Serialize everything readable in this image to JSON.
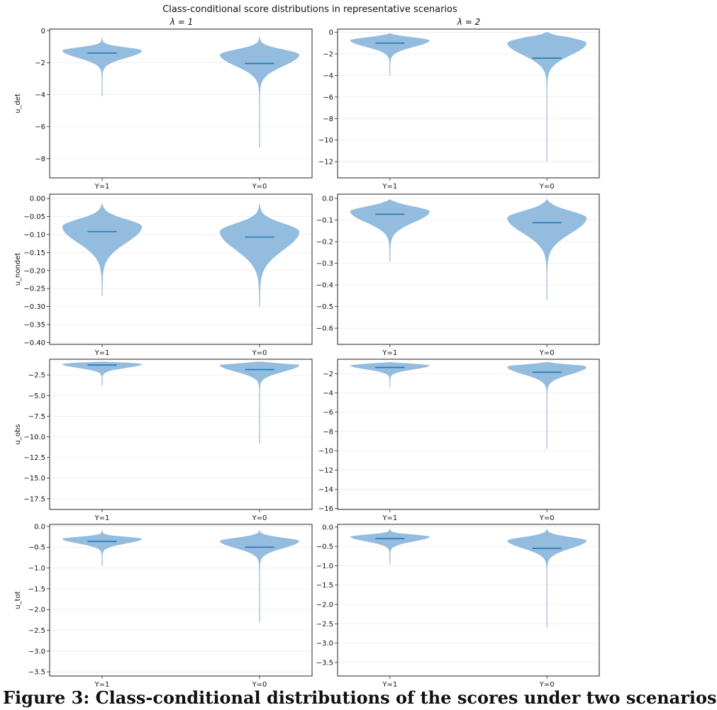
{
  "figure": {
    "title": "Class-conditional score distributions in representative scenarios",
    "column_titles": [
      "λ = 1",
      "λ = 2"
    ],
    "caption": "Figure 3: Class-conditional distributions of the scores under two scenarios"
  },
  "colors": {
    "violin_fill": "#8db8dc",
    "median_line": "#1f77b4",
    "grid": "#ebebeb",
    "axis": "#222222",
    "text": "#111111"
  },
  "chart_data": [
    {
      "type": "violin",
      "row": 0,
      "col": 0,
      "title": "λ = 1",
      "xlabel": "",
      "ylabel": "u_det",
      "categories": [
        "Y=1",
        "Y=0"
      ],
      "ylim": [
        -9.2,
        0.1
      ],
      "yticks": [
        0,
        -2,
        -4,
        -6,
        -8
      ],
      "ytick_labels": [
        "0",
        "−2",
        "−4",
        "−6",
        "−8"
      ],
      "grid": true,
      "violins": [
        {
          "category": "Y=1",
          "median": -1.4,
          "top": -0.45,
          "bottom": -4.1,
          "mode": -1.25,
          "width": 0.5,
          "spread": 0.45
        },
        {
          "category": "Y=0",
          "median": -2.05,
          "top": -0.4,
          "bottom": -7.3,
          "mode": -1.5,
          "width": 0.5,
          "spread": 0.7
        }
      ]
    },
    {
      "type": "violin",
      "row": 0,
      "col": 1,
      "title": "λ = 2",
      "xlabel": "",
      "ylabel": "",
      "categories": [
        "Y=1",
        "Y=0"
      ],
      "ylim": [
        -13.5,
        0.3
      ],
      "yticks": [
        0,
        -2,
        -4,
        -6,
        -8,
        -10,
        -12
      ],
      "ytick_labels": [
        "0",
        "−2",
        "−4",
        "−6",
        "−8",
        "−10",
        "−12"
      ],
      "grid": true,
      "violins": [
        {
          "category": "Y=1",
          "median": -1.0,
          "top": -0.1,
          "bottom": -4.0,
          "mode": -0.75,
          "width": 0.5,
          "spread": 0.6
        },
        {
          "category": "Y=0",
          "median": -2.4,
          "top": 0.0,
          "bottom": -12.0,
          "mode": -1.0,
          "width": 0.5,
          "spread": 1.1
        }
      ]
    },
    {
      "type": "violin",
      "row": 1,
      "col": 0,
      "title": "",
      "xlabel": "",
      "ylabel": "u_nondet",
      "categories": [
        "Y=1",
        "Y=0"
      ],
      "ylim": [
        -0.405,
        0.012
      ],
      "yticks": [
        0,
        -0.05,
        -0.1,
        -0.15,
        -0.2,
        -0.25,
        -0.3,
        -0.35,
        -0.4
      ],
      "ytick_labels": [
        "0.00",
        "−0.05",
        "−0.10",
        "−0.15",
        "−0.20",
        "−0.25",
        "−0.30",
        "−0.35",
        "−0.40"
      ],
      "grid": true,
      "violins": [
        {
          "category": "Y=1",
          "median": -0.092,
          "top": -0.015,
          "bottom": -0.27,
          "mode": -0.078,
          "width": 0.5,
          "spread": 0.045
        },
        {
          "category": "Y=0",
          "median": -0.107,
          "top": -0.015,
          "bottom": -0.3,
          "mode": -0.092,
          "width": 0.5,
          "spread": 0.05
        }
      ]
    },
    {
      "type": "violin",
      "row": 1,
      "col": 1,
      "title": "",
      "xlabel": "",
      "ylabel": "",
      "categories": [
        "Y=1",
        "Y=0"
      ],
      "ylim": [
        -0.675,
        0.02
      ],
      "yticks": [
        0,
        -0.1,
        -0.2,
        -0.3,
        -0.4,
        -0.5,
        -0.6
      ],
      "ytick_labels": [
        "0.0",
        "−0.1",
        "−0.2",
        "−0.3",
        "−0.4",
        "−0.5",
        "−0.6"
      ],
      "grid": true,
      "violins": [
        {
          "category": "Y=1",
          "median": -0.073,
          "top": -0.005,
          "bottom": -0.29,
          "mode": -0.06,
          "width": 0.5,
          "spread": 0.05
        },
        {
          "category": "Y=0",
          "median": -0.112,
          "top": -0.005,
          "bottom": -0.47,
          "mode": -0.09,
          "width": 0.5,
          "spread": 0.07
        }
      ]
    },
    {
      "type": "violin",
      "row": 2,
      "col": 0,
      "title": "",
      "xlabel": "",
      "ylabel": "u_obs",
      "categories": [
        "Y=1",
        "Y=0"
      ],
      "ylim": [
        -18.8,
        -0.6
      ],
      "yticks": [
        -2.5,
        -5,
        -7.5,
        -10,
        -12.5,
        -15,
        -17.5
      ],
      "ytick_labels": [
        "−2.5",
        "−5.0",
        "−7.5",
        "−10.0",
        "−12.5",
        "−15.0",
        "−17.5"
      ],
      "grid": true,
      "violins": [
        {
          "category": "Y=1",
          "median": -1.3,
          "top": -0.9,
          "bottom": -3.8,
          "mode": -1.2,
          "width": 0.5,
          "spread": 0.45
        },
        {
          "category": "Y=0",
          "median": -1.85,
          "top": -0.9,
          "bottom": -10.8,
          "mode": -1.3,
          "width": 0.5,
          "spread": 0.8
        }
      ]
    },
    {
      "type": "violin",
      "row": 2,
      "col": 1,
      "title": "",
      "xlabel": "",
      "ylabel": "",
      "categories": [
        "Y=1",
        "Y=0"
      ],
      "ylim": [
        -16.1,
        -0.5
      ],
      "yticks": [
        -2,
        -4,
        -6,
        -8,
        -10,
        -12,
        -14,
        -16
      ],
      "ytick_labels": [
        "−2",
        "−4",
        "−6",
        "−8",
        "−10",
        "−12",
        "−14",
        "−16"
      ],
      "grid": true,
      "violins": [
        {
          "category": "Y=1",
          "median": -1.35,
          "top": -0.8,
          "bottom": -3.4,
          "mode": -1.15,
          "width": 0.5,
          "spread": 0.4
        },
        {
          "category": "Y=0",
          "median": -1.85,
          "top": -0.8,
          "bottom": -9.8,
          "mode": -1.3,
          "width": 0.5,
          "spread": 0.75
        }
      ]
    },
    {
      "type": "violin",
      "row": 3,
      "col": 0,
      "title": "",
      "xlabel": "",
      "ylabel": "u_tot",
      "categories": [
        "Y=1",
        "Y=0"
      ],
      "ylim": [
        -3.6,
        0.05
      ],
      "yticks": [
        0,
        -0.5,
        -1,
        -1.5,
        -2,
        -2.5,
        -3,
        -3.5
      ],
      "ytick_labels": [
        "0.0",
        "−0.5",
        "−1.0",
        "−1.5",
        "−2.0",
        "−2.5",
        "−3.0",
        "−3.5"
      ],
      "grid": true,
      "violins": [
        {
          "category": "Y=1",
          "median": -0.36,
          "top": -0.1,
          "bottom": -0.95,
          "mode": -0.3,
          "width": 0.5,
          "spread": 0.11
        },
        {
          "category": "Y=0",
          "median": -0.5,
          "top": -0.1,
          "bottom": -2.3,
          "mode": -0.35,
          "width": 0.5,
          "spread": 0.17
        }
      ]
    },
    {
      "type": "violin",
      "row": 3,
      "col": 1,
      "title": "",
      "xlabel": "",
      "ylabel": "",
      "categories": [
        "Y=1",
        "Y=0"
      ],
      "ylim": [
        -3.85,
        0.07
      ],
      "yticks": [
        0,
        -0.5,
        -1,
        -1.5,
        -2,
        -2.5,
        -3,
        -3.5
      ],
      "ytick_labels": [
        "0.0",
        "−0.5",
        "−1.0",
        "−1.5",
        "−2.0",
        "−2.5",
        "−3.0",
        "−3.5"
      ],
      "grid": true,
      "violins": [
        {
          "category": "Y=1",
          "median": -0.3,
          "top": -0.05,
          "bottom": -0.95,
          "mode": -0.25,
          "width": 0.5,
          "spread": 0.12
        },
        {
          "category": "Y=0",
          "median": -0.55,
          "top": -0.05,
          "bottom": -2.6,
          "mode": -0.35,
          "width": 0.5,
          "spread": 0.2
        }
      ]
    }
  ]
}
